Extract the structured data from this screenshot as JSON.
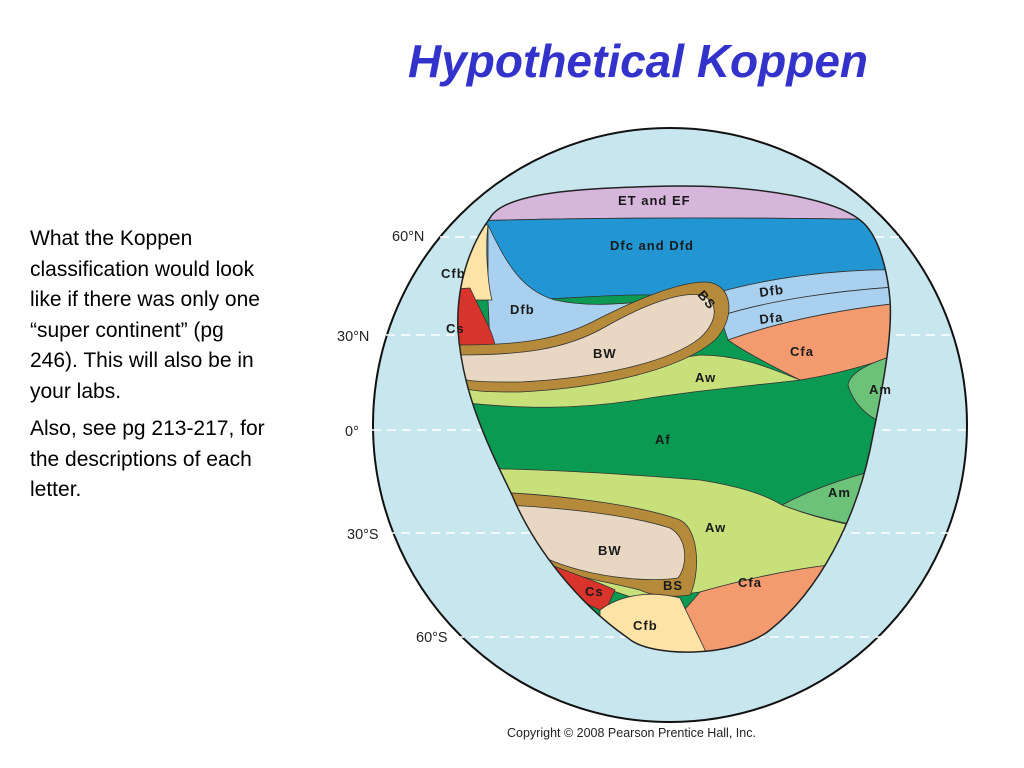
{
  "title": "Hypothetical Koppen",
  "description": {
    "paragraph1": "What the Koppen classification would look like if there was only one “super continent” (pg 246). This will also be in your labs.",
    "paragraph2": "Also, see pg 213-217, for the descriptions of each letter."
  },
  "latitudes": {
    "n60": "60°N",
    "n30": "30°N",
    "eq": "0°",
    "s30": "30°S",
    "s60": "60°S"
  },
  "regions": {
    "et_ef": "ET and EF",
    "dfc_dfd": "Dfc and Dfd",
    "dfb_east": "Dfb",
    "dfa": "Dfa",
    "dfb_west": "Dfb",
    "bs_north": "BS",
    "cfb_north": "Cfb",
    "cs_north": "Cs",
    "bw_north": "BW",
    "cfa_north": "Cfa",
    "aw_north": "Aw",
    "am_north": "Am",
    "af": "Af",
    "am_south": "Am",
    "aw_south": "Aw",
    "bw_south": "BW",
    "cs_south": "Cs",
    "bs_south": "BS",
    "cfa_south": "Cfa",
    "cfb_south": "Cfb"
  },
  "copyright": "Copyright © 2008 Pearson Prentice Hall, Inc.",
  "colors": {
    "title": "#3333cc",
    "ocean": "#c8e6ee",
    "et_ef": "#c9a6d3",
    "dfc_dfd": "#2196d3",
    "dfb": "#a9d0ee",
    "dfa": "#a9d0ee",
    "bs": "#b58a3a",
    "bw": "#e8d8c3",
    "cs": "#d9342b",
    "cfb": "#fde3a5",
    "cfa": "#f39a6e",
    "aw": "#c8e07a",
    "am": "#6dc27a",
    "af": "#0a9a52"
  }
}
